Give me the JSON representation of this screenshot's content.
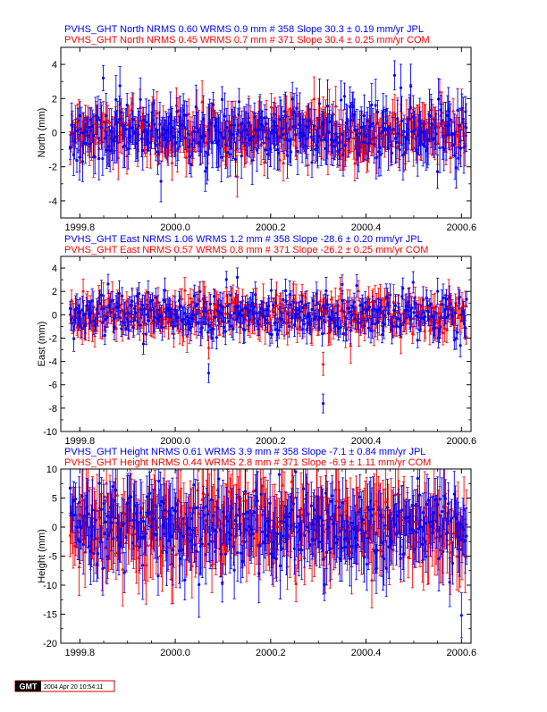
{
  "colors": {
    "jpl": "#0000ff",
    "com": "#ff0000",
    "axis": "#000000"
  },
  "footer": {
    "logo": "GMT",
    "timestamp": "2004 Apr 20 10:54:11"
  },
  "chart_data": [
    {
      "type": "scatter",
      "component": "north",
      "title_jpl": "PVHS_GHT North NRMS 0.60 WRMS  0.9 mm # 358 Slope   30.3 ±  0.19 mm/yr JPL",
      "title_com": "PVHS_GHT North NRMS 0.45 WRMS  0.7 mm # 371 Slope   30.4 ±  0.25 mm/yr COM",
      "ylabel": "North (mm)",
      "xlim": [
        1999.76,
        2000.62
      ],
      "ylim": [
        -5,
        5
      ],
      "xticks": [
        1999.8,
        2000.0,
        2000.2,
        2000.4,
        2000.6
      ],
      "xtick_labels": [
        "1999.8",
        "2000.0",
        "2000.2",
        "2000.4",
        "2000.6"
      ],
      "yticks": [
        -4,
        -2,
        0,
        2,
        4
      ],
      "ytick_labels": [
        "-4",
        "-2",
        "0",
        "2",
        "4"
      ],
      "series": [
        {
          "name": "JPL",
          "n": 358,
          "x_start": 1999.78,
          "x_end": 2000.61,
          "sigma": 0.9,
          "err": 1.1,
          "marker": "circle",
          "seed": 11
        },
        {
          "name": "COM",
          "n": 371,
          "x_start": 1999.78,
          "x_end": 2000.61,
          "sigma": 0.7,
          "err": 0.95,
          "marker": "triangle",
          "seed": 23
        }
      ]
    },
    {
      "type": "scatter",
      "component": "east",
      "title_jpl": "PVHS_GHT East NRMS 1.06 WRMS  1.2 mm # 358 Slope  -28.6 ±  0.20 mm/yr JPL",
      "title_com": "PVHS_GHT East NRMS 0.57 WRMS  0.8 mm # 371 Slope  -26.2 ±  0.25 mm/yr COM",
      "ylabel": "East (mm)",
      "xlim": [
        1999.76,
        2000.62
      ],
      "ylim": [
        -10,
        5
      ],
      "xticks": [
        1999.8,
        2000.0,
        2000.2,
        2000.4,
        2000.6
      ],
      "xtick_labels": [
        "1999.8",
        "2000.0",
        "2000.2",
        "2000.4",
        "2000.6"
      ],
      "yticks": [
        -10,
        -8,
        -6,
        -4,
        -2,
        0,
        2,
        4
      ],
      "ytick_labels": [
        "-10",
        "-8",
        "-6",
        "-4",
        "-2",
        "0",
        "2",
        "4"
      ],
      "series": [
        {
          "name": "JPL",
          "n": 358,
          "x_start": 1999.78,
          "x_end": 2000.61,
          "sigma": 1.0,
          "err": 0.9,
          "marker": "circle",
          "seed": 37,
          "outliers": [
            [
              2000.31,
              -7.6
            ],
            [
              2000.13,
              3.2
            ],
            [
              2000.35,
              2.6
            ],
            [
              2000.07,
              -5.0
            ]
          ]
        },
        {
          "name": "COM",
          "n": 371,
          "x_start": 1999.78,
          "x_end": 2000.61,
          "sigma": 0.8,
          "err": 1.1,
          "marker": "triangle",
          "seed": 41,
          "outliers": [
            [
              2000.31,
              -4.2
            ],
            [
              2000.07,
              -2.8
            ]
          ]
        }
      ]
    },
    {
      "type": "scatter",
      "component": "height",
      "title_jpl": "PVHS_GHT Height NRMS 0.61 WRMS  3.9 mm # 358 Slope   -7.1 ±  0.84 mm/yr JPL",
      "title_com": "PVHS_GHT Height NRMS 0.44 WRMS  2.8 mm # 371 Slope   -6.9 ±  1.11 mm/yr COM",
      "ylabel": "Height (mm)",
      "xlim": [
        1999.76,
        2000.62
      ],
      "ylim": [
        -20,
        10
      ],
      "xticks": [
        1999.8,
        2000.0,
        2000.2,
        2000.4,
        2000.6
      ],
      "xtick_labels": [
        "1999.8",
        "2000.0",
        "2000.2",
        "2000.4",
        "2000.6"
      ],
      "yticks": [
        -20,
        -15,
        -10,
        -5,
        0,
        5,
        10
      ],
      "ytick_labels": [
        "-20",
        "-15",
        "-10",
        "-5",
        "0",
        "5",
        "10"
      ],
      "series": [
        {
          "name": "JPL",
          "n": 358,
          "x_start": 1999.78,
          "x_end": 2000.61,
          "sigma": 3.9,
          "err": 4.3,
          "marker": "circle",
          "seed": 53,
          "outliers": [
            [
              2000.6,
              -15.2
            ]
          ]
        },
        {
          "name": "COM",
          "n": 371,
          "x_start": 1999.78,
          "x_end": 2000.61,
          "sigma": 2.8,
          "err": 5.2,
          "marker": "triangle",
          "seed": 67
        }
      ]
    }
  ]
}
